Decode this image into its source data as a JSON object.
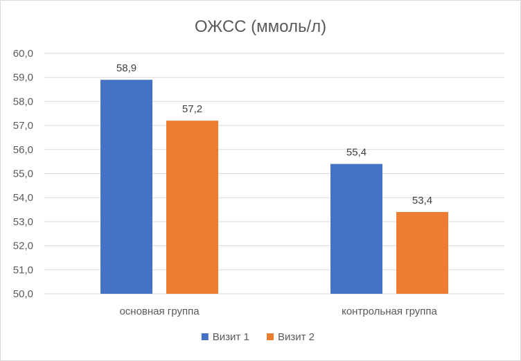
{
  "chart_data": {
    "type": "bar",
    "title": "ОЖСС (ммоль/л)",
    "xlabel": "",
    "ylabel": "",
    "categories": [
      "основная группа",
      "контрольная группа"
    ],
    "series": [
      {
        "name": "Визит 1",
        "values": [
          58.9,
          55.4
        ],
        "labels": [
          "58,9",
          "55,4"
        ],
        "color": "#4472C4"
      },
      {
        "name": "Визит 2",
        "values": [
          57.2,
          53.4
        ],
        "labels": [
          "57,2",
          "53,4"
        ],
        "color": "#ED7D31"
      }
    ],
    "ylim": [
      50.0,
      60.0
    ],
    "yticks": [
      50.0,
      51.0,
      52.0,
      53.0,
      54.0,
      55.0,
      56.0,
      57.0,
      58.0,
      59.0,
      60.0
    ],
    "ytick_labels": [
      "50,0",
      "51,0",
      "52,0",
      "53,0",
      "54,0",
      "55,0",
      "56,0",
      "57,0",
      "58,0",
      "59,0",
      "60,0"
    ],
    "grid": true,
    "legend": "bottom",
    "gridline_color": "#d9d9d9"
  }
}
